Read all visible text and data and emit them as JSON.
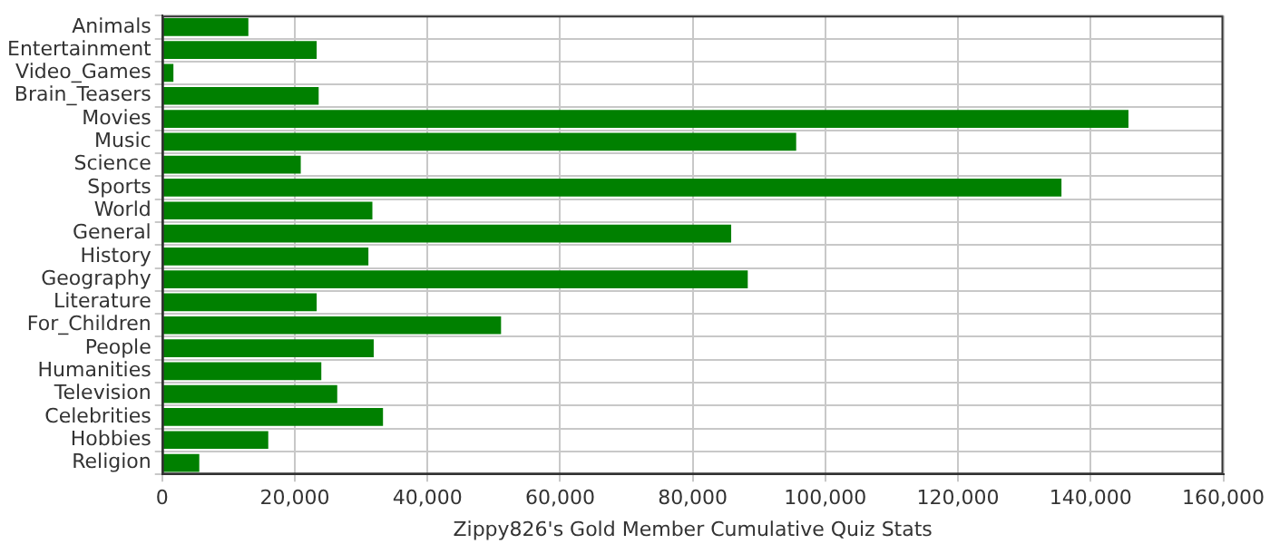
{
  "chart_data": {
    "type": "bar",
    "orientation": "horizontal",
    "xlabel": "Zippy826's Gold Member Cumulative Quiz Stats",
    "categories": [
      "Animals",
      "Entertainment",
      "Video_Games",
      "Brain_Teasers",
      "Movies",
      "Music",
      "Science",
      "Sports",
      "World",
      "General",
      "History",
      "Geography",
      "Literature",
      "For_Children",
      "People",
      "Humanities",
      "Television",
      "Celebrities",
      "Hobbies",
      "Religion"
    ],
    "values": [
      13000,
      23300,
      1700,
      23600,
      145700,
      95600,
      20900,
      135600,
      31700,
      85800,
      31100,
      88300,
      23300,
      51100,
      31900,
      24000,
      26400,
      33300,
      16000,
      5600
    ],
    "color": "#008000",
    "xlim": [
      0,
      160000
    ],
    "xticks": [
      {
        "value": 0,
        "label": "0"
      },
      {
        "value": 20000,
        "label": "20,000"
      },
      {
        "value": 40000,
        "label": "40,000"
      },
      {
        "value": 60000,
        "label": "60,000"
      },
      {
        "value": 80000,
        "label": "80,000"
      },
      {
        "value": 100000,
        "label": "100,000"
      },
      {
        "value": 120000,
        "label": "120,000"
      },
      {
        "value": 140000,
        "label": "140,000"
      },
      {
        "value": 160000,
        "label": "160,000"
      }
    ],
    "grid": true,
    "legend": false
  }
}
